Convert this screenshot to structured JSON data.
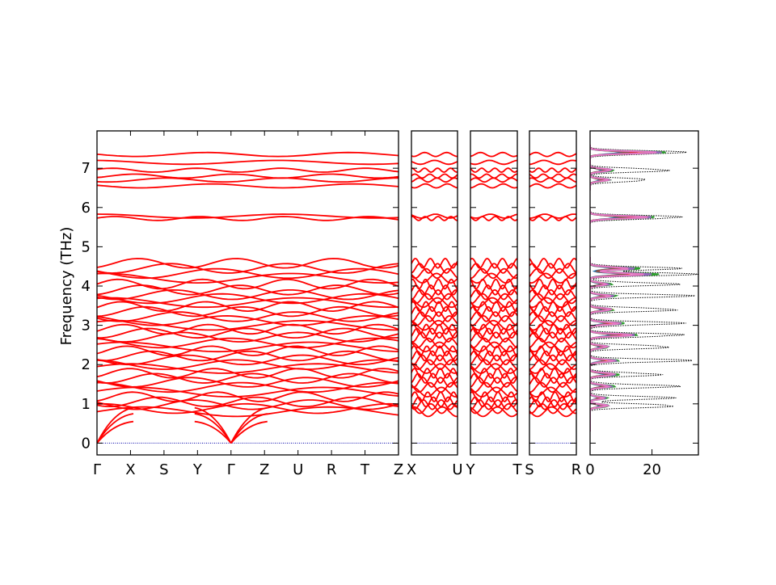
{
  "chart_data": {
    "type": "line",
    "ylabel": "Frequency (THz)",
    "ylim": [
      -0.3,
      7.95
    ],
    "yticks": [
      0,
      1,
      2,
      3,
      4,
      5,
      6,
      7
    ],
    "band_color": "#ff0000",
    "zero_line_color": "#0000aa",
    "frame_color": "#000000",
    "panels": [
      {
        "name": "main",
        "labels": [
          "Γ",
          "X",
          "S",
          "Y",
          "Γ",
          "Z",
          "U",
          "R",
          "T",
          "Z"
        ],
        "breaks": [
          4
        ]
      },
      {
        "name": "x-u",
        "labels": [
          "X",
          "U"
        ]
      },
      {
        "name": "y-t",
        "labels": [
          "Y",
          "T"
        ]
      },
      {
        "name": "s-r",
        "labels": [
          "S",
          "R"
        ]
      }
    ],
    "acoustic_start": 0.0,
    "acoustic_top": [
      0.55,
      0.75,
      0.9
    ],
    "band_levels": [
      0.8,
      0.88,
      0.98,
      1.05,
      1.18,
      1.3,
      1.42,
      1.55,
      1.65,
      1.78,
      1.9,
      2.0,
      2.12,
      2.22,
      2.35,
      2.45,
      2.55,
      2.7,
      2.8,
      2.9,
      3.0,
      3.12,
      3.22,
      3.35,
      3.48,
      3.58,
      3.68,
      3.78,
      3.9,
      4.05,
      4.2,
      4.32,
      4.45,
      4.58,
      5.72,
      5.78,
      6.55,
      6.7,
      6.8,
      6.95,
      7.15,
      7.35
    ],
    "dos": {
      "xlim": [
        0,
        35
      ],
      "xticks": [
        0,
        20
      ],
      "total_color": "#000000",
      "projections": [
        {
          "color": "#1f77b4"
        },
        {
          "color": "#ff7f0e"
        },
        {
          "color": "#2ca02c"
        },
        {
          "color": "#d62728"
        },
        {
          "color": "#9467bd"
        },
        {
          "color": "#8c564b"
        },
        {
          "color": "#e377c2"
        }
      ],
      "peaks": [
        {
          "f": 0.95,
          "total": 33,
          "proj": 8
        },
        {
          "f": 1.15,
          "total": 28,
          "proj": 6
        },
        {
          "f": 1.45,
          "total": 30,
          "proj": 9
        },
        {
          "f": 1.75,
          "total": 26,
          "proj": 12
        },
        {
          "f": 2.1,
          "total": 34,
          "proj": 10
        },
        {
          "f": 2.45,
          "total": 31,
          "proj": 8
        },
        {
          "f": 2.75,
          "total": 35,
          "proj": 18
        },
        {
          "f": 3.05,
          "total": 32,
          "proj": 12
        },
        {
          "f": 3.4,
          "total": 33,
          "proj": 10
        },
        {
          "f": 3.75,
          "total": 34,
          "proj": 9
        },
        {
          "f": 4.05,
          "total": 30,
          "proj": 8
        },
        {
          "f": 4.3,
          "total": 35,
          "proj": 24
        },
        {
          "f": 4.45,
          "total": 30,
          "proj": 18
        },
        {
          "f": 5.75,
          "total": 35,
          "proj": 25
        },
        {
          "f": 6.7,
          "total": 22,
          "proj": 8
        },
        {
          "f": 6.95,
          "total": 30,
          "proj": 10
        },
        {
          "f": 7.4,
          "total": 35,
          "proj": 28
        }
      ]
    }
  }
}
